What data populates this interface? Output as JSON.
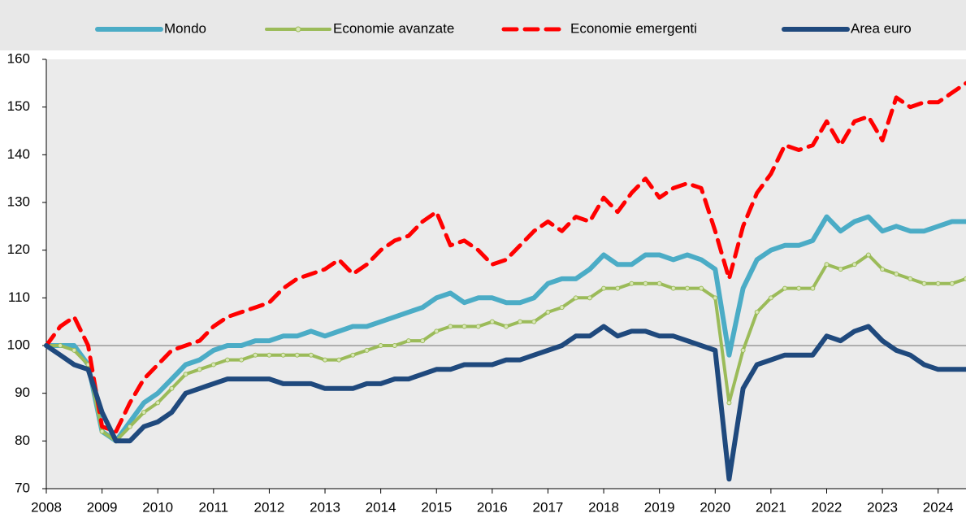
{
  "chart_data": {
    "type": "line",
    "x": [
      2008,
      2008.25,
      2008.5,
      2008.75,
      2009,
      2009.25,
      2009.5,
      2009.75,
      2010,
      2010.25,
      2010.5,
      2010.75,
      2011,
      2011.25,
      2011.5,
      2011.75,
      2012,
      2012.25,
      2012.5,
      2012.75,
      2013,
      2013.25,
      2013.5,
      2013.75,
      2014,
      2014.25,
      2014.5,
      2014.75,
      2015,
      2015.25,
      2015.5,
      2015.75,
      2016,
      2016.25,
      2016.5,
      2016.75,
      2017,
      2017.25,
      2017.5,
      2017.75,
      2018,
      2018.25,
      2018.5,
      2018.75,
      2019,
      2019.25,
      2019.5,
      2019.75,
      2020,
      2020.25,
      2020.5,
      2020.75,
      2021,
      2021.25,
      2021.5,
      2021.75,
      2022,
      2022.25,
      2022.5,
      2022.75,
      2023,
      2023.25,
      2023.5,
      2023.75,
      2024,
      2024.25,
      2024.5
    ],
    "series": [
      {
        "name": "Mondo",
        "color": "#4bacc6",
        "style": "solid",
        "values": [
          100,
          100,
          100,
          96,
          82,
          80,
          84,
          88,
          90,
          93,
          96,
          97,
          99,
          100,
          100,
          101,
          101,
          102,
          102,
          103,
          102,
          103,
          104,
          104,
          105,
          106,
          107,
          108,
          110,
          111,
          109,
          110,
          110,
          109,
          109,
          110,
          113,
          114,
          114,
          116,
          119,
          117,
          117,
          119,
          119,
          118,
          119,
          118,
          116,
          98,
          112,
          118,
          120,
          121,
          121,
          122,
          127,
          124,
          126,
          127,
          124,
          125,
          124,
          124,
          125,
          126,
          126
        ]
      },
      {
        "name": "Economie avanzate",
        "color": "#9bbb59",
        "style": "dotted",
        "values": [
          100,
          100,
          99,
          96,
          82,
          80,
          83,
          86,
          88,
          91,
          94,
          95,
          96,
          97,
          97,
          98,
          98,
          98,
          98,
          98,
          97,
          97,
          98,
          99,
          100,
          100,
          101,
          101,
          103,
          104,
          104,
          104,
          105,
          104,
          105,
          105,
          107,
          108,
          110,
          110,
          112,
          112,
          113,
          113,
          113,
          112,
          112,
          112,
          110,
          88,
          99,
          107,
          110,
          112,
          112,
          112,
          117,
          116,
          117,
          119,
          116,
          115,
          114,
          113,
          113,
          113,
          114
        ]
      },
      {
        "name": "Economie emergenti",
        "color": "#ff0000",
        "style": "dashed",
        "values": [
          100,
          104,
          106,
          100,
          83,
          82,
          88,
          93,
          96,
          99,
          100,
          101,
          104,
          106,
          107,
          108,
          109,
          112,
          114,
          115,
          116,
          118,
          115,
          117,
          120,
          122,
          123,
          126,
          128,
          121,
          122,
          120,
          117,
          118,
          121,
          124,
          126,
          124,
          127,
          126,
          131,
          128,
          132,
          135,
          131,
          133,
          134,
          133,
          124,
          114,
          125,
          132,
          136,
          142,
          141,
          142,
          147,
          142,
          147,
          148,
          143,
          152,
          150,
          151,
          151,
          153,
          155
        ]
      },
      {
        "name": "Area euro",
        "color": "#1f497d",
        "style": "solid",
        "values": [
          100,
          98,
          96,
          95,
          86,
          80,
          80,
          83,
          84,
          86,
          90,
          91,
          92,
          93,
          93,
          93,
          93,
          92,
          92,
          92,
          91,
          91,
          91,
          92,
          92,
          93,
          93,
          94,
          95,
          95,
          96,
          96,
          96,
          97,
          97,
          98,
          99,
          100,
          102,
          102,
          104,
          102,
          103,
          103,
          102,
          102,
          101,
          100,
          99,
          72,
          91,
          96,
          97,
          98,
          98,
          98,
          102,
          101,
          103,
          104,
          101,
          99,
          98,
          96,
          95,
          95,
          95
        ]
      }
    ],
    "xlim": [
      2008,
      2024.5
    ],
    "xticks": [
      2008,
      2009,
      2010,
      2011,
      2012,
      2013,
      2014,
      2015,
      2016,
      2017,
      2018,
      2019,
      2020,
      2021,
      2022,
      2023,
      2024
    ],
    "ylim": [
      70,
      160
    ],
    "yticks": [
      70,
      80,
      90,
      100,
      110,
      120,
      130,
      140,
      150,
      160
    ],
    "reference_line": 100
  }
}
